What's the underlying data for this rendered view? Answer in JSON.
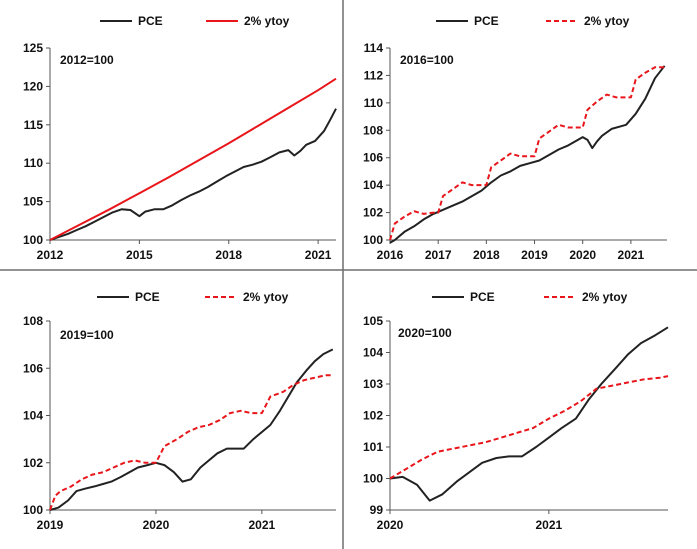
{
  "colors": {
    "pce": "#222222",
    "target": "#e8161b",
    "divider": "#6e6e6e"
  },
  "chart_data": [
    {
      "type": "line",
      "base_note": "2012=100",
      "ylim": [
        100,
        125
      ],
      "yticks": [
        100,
        105,
        110,
        115,
        120,
        125
      ],
      "xlim": [
        2012.0,
        2021.6
      ],
      "xticks": [
        2012,
        2015,
        2018,
        2021
      ],
      "xtick_labels": [
        "2012",
        "2015",
        "2018",
        "2021"
      ],
      "grid": false,
      "legend_position": "top",
      "series": [
        {
          "name": "PCE",
          "style": "solid",
          "color": "#222222",
          "x": [
            2012.0,
            2012.3,
            2012.6,
            2012.9,
            2013.2,
            2013.5,
            2013.8,
            2014.1,
            2014.4,
            2014.7,
            2015.0,
            2015.2,
            2015.5,
            2015.8,
            2016.1,
            2016.4,
            2016.7,
            2017.0,
            2017.3,
            2017.6,
            2017.9,
            2018.2,
            2018.5,
            2018.8,
            2019.1,
            2019.4,
            2019.7,
            2020.0,
            2020.2,
            2020.4,
            2020.6,
            2020.9,
            2021.2,
            2021.4,
            2021.6
          ],
          "values": [
            100.0,
            100.4,
            100.8,
            101.3,
            101.8,
            102.4,
            103.0,
            103.6,
            104.0,
            103.9,
            103.1,
            103.7,
            104.0,
            104.0,
            104.5,
            105.2,
            105.8,
            106.3,
            106.9,
            107.6,
            108.3,
            108.9,
            109.5,
            109.8,
            110.2,
            110.8,
            111.4,
            111.7,
            111.0,
            111.6,
            112.4,
            112.9,
            114.2,
            115.6,
            117.1
          ]
        },
        {
          "name": "2% ytoy",
          "style": "solid",
          "color": "#e8161b",
          "x": [
            2012.0,
            2013.0,
            2014.0,
            2015.0,
            2016.0,
            2017.0,
            2018.0,
            2019.0,
            2020.0,
            2021.0,
            2021.6
          ],
          "values": [
            100.0,
            102.0,
            104.0,
            106.1,
            108.2,
            110.4,
            112.6,
            114.9,
            117.2,
            119.5,
            121.0
          ]
        }
      ]
    },
    {
      "type": "line",
      "base_note": "2016=100",
      "ylim": [
        100,
        114
      ],
      "yticks": [
        100,
        102,
        104,
        106,
        108,
        110,
        112,
        114
      ],
      "xlim": [
        2016.0,
        2021.75
      ],
      "xticks": [
        2016,
        2017,
        2018,
        2019,
        2020,
        2021
      ],
      "xtick_labels": [
        "2016",
        "2017",
        "2018",
        "2019",
        "2020",
        "2021"
      ],
      "grid": false,
      "legend_position": "top",
      "series": [
        {
          "name": "PCE",
          "style": "solid",
          "color": "#222222",
          "x": [
            2016.0,
            2016.1,
            2016.3,
            2016.5,
            2016.7,
            2016.9,
            2017.1,
            2017.3,
            2017.5,
            2017.7,
            2017.9,
            2018.1,
            2018.3,
            2018.5,
            2018.7,
            2018.9,
            2019.1,
            2019.3,
            2019.5,
            2019.7,
            2019.9,
            2020.0,
            2020.1,
            2020.2,
            2020.3,
            2020.4,
            2020.6,
            2020.8,
            2020.9,
            2021.1,
            2021.3,
            2021.5,
            2021.7
          ],
          "values": [
            99.8,
            100.0,
            100.6,
            101.0,
            101.5,
            101.9,
            102.2,
            102.5,
            102.8,
            103.2,
            103.6,
            104.2,
            104.7,
            105.0,
            105.4,
            105.6,
            105.8,
            106.2,
            106.6,
            106.9,
            107.3,
            107.5,
            107.3,
            106.7,
            107.2,
            107.6,
            108.1,
            108.3,
            108.4,
            109.2,
            110.3,
            111.8,
            112.7
          ]
        },
        {
          "name": "2% ytoy",
          "style": "dashed",
          "color": "#e8161b",
          "x": [
            2016.0,
            2016.1,
            2016.3,
            2016.5,
            2016.7,
            2016.9,
            2017.0,
            2017.1,
            2017.3,
            2017.5,
            2017.7,
            2017.9,
            2018.0,
            2018.1,
            2018.3,
            2018.5,
            2018.7,
            2018.9,
            2019.0,
            2019.1,
            2019.3,
            2019.5,
            2019.7,
            2019.9,
            2020.0,
            2020.1,
            2020.3,
            2020.5,
            2020.7,
            2020.9,
            2021.0,
            2021.1,
            2021.3,
            2021.5,
            2021.7
          ],
          "values": [
            100.0,
            101.2,
            101.7,
            102.1,
            101.9,
            102.0,
            102.0,
            103.2,
            103.7,
            104.2,
            104.0,
            104.0,
            104.0,
            105.3,
            105.8,
            106.3,
            106.1,
            106.1,
            106.1,
            107.4,
            107.9,
            108.4,
            108.2,
            108.2,
            108.2,
            109.5,
            110.1,
            110.6,
            110.4,
            110.4,
            110.4,
            111.7,
            112.2,
            112.6,
            112.6
          ]
        }
      ]
    },
    {
      "type": "line",
      "base_note": "2019=100",
      "ylim": [
        100,
        108
      ],
      "yticks": [
        100,
        102,
        104,
        106,
        108
      ],
      "xlim": [
        2019.0,
        2021.7
      ],
      "xticks": [
        2019,
        2020,
        2021
      ],
      "xtick_labels": [
        "2019",
        "2020",
        "2021"
      ],
      "grid": false,
      "legend_position": "top",
      "series": [
        {
          "name": "PCE",
          "style": "solid",
          "color": "#222222",
          "x": [
            2019.0,
            2019.08,
            2019.17,
            2019.25,
            2019.33,
            2019.42,
            2019.5,
            2019.58,
            2019.67,
            2019.75,
            2019.83,
            2019.92,
            2020.0,
            2020.08,
            2020.17,
            2020.25,
            2020.33,
            2020.42,
            2020.5,
            2020.58,
            2020.67,
            2020.75,
            2020.83,
            2020.92,
            2021.0,
            2021.08,
            2021.17,
            2021.25,
            2021.33,
            2021.42,
            2021.5,
            2021.58,
            2021.67
          ],
          "values": [
            100.0,
            100.1,
            100.4,
            100.8,
            100.9,
            101.0,
            101.1,
            101.2,
            101.4,
            101.6,
            101.8,
            101.9,
            102.0,
            101.9,
            101.6,
            101.2,
            101.3,
            101.8,
            102.1,
            102.4,
            102.6,
            102.6,
            102.6,
            103.0,
            103.3,
            103.6,
            104.2,
            104.8,
            105.4,
            105.9,
            106.3,
            106.6,
            106.8
          ]
        },
        {
          "name": "2% ytoy",
          "style": "dashed",
          "color": "#e8161b",
          "x": [
            2019.0,
            2019.05,
            2019.1,
            2019.2,
            2019.3,
            2019.4,
            2019.5,
            2019.6,
            2019.7,
            2019.8,
            2019.9,
            2020.0,
            2020.08,
            2020.2,
            2020.3,
            2020.4,
            2020.5,
            2020.6,
            2020.7,
            2020.8,
            2020.9,
            2021.0,
            2021.08,
            2021.2,
            2021.3,
            2021.4,
            2021.5,
            2021.6,
            2021.67
          ],
          "values": [
            100.0,
            100.6,
            100.8,
            101.0,
            101.3,
            101.5,
            101.6,
            101.8,
            102.0,
            102.1,
            102.0,
            102.0,
            102.7,
            103.0,
            103.3,
            103.5,
            103.6,
            103.8,
            104.1,
            104.2,
            104.1,
            104.1,
            104.8,
            105.0,
            105.3,
            105.5,
            105.6,
            105.7,
            105.7
          ]
        }
      ]
    },
    {
      "type": "line",
      "base_note": "2020=100",
      "ylim": [
        99,
        105
      ],
      "yticks": [
        99,
        100,
        101,
        102,
        103,
        104,
        105
      ],
      "xlim": [
        2020.0,
        2021.75
      ],
      "xticks": [
        2020,
        2021
      ],
      "xtick_labels": [
        "2020",
        "2021"
      ],
      "grid": false,
      "legend_position": "top",
      "series": [
        {
          "name": "PCE",
          "style": "solid",
          "color": "#222222",
          "x": [
            2020.0,
            2020.08,
            2020.17,
            2020.25,
            2020.33,
            2020.42,
            2020.5,
            2020.58,
            2020.67,
            2020.75,
            2020.83,
            2020.92,
            2021.0,
            2021.08,
            2021.17,
            2021.25,
            2021.33,
            2021.42,
            2021.5,
            2021.58,
            2021.67,
            2021.75
          ],
          "values": [
            100.0,
            100.05,
            99.8,
            99.3,
            99.5,
            99.9,
            100.2,
            100.5,
            100.65,
            100.7,
            100.7,
            101.0,
            101.3,
            101.6,
            101.9,
            102.5,
            103.0,
            103.5,
            103.95,
            104.3,
            104.55,
            104.8
          ]
        },
        {
          "name": "2% ytoy",
          "style": "dashed",
          "color": "#e8161b",
          "x": [
            2020.0,
            2020.1,
            2020.2,
            2020.3,
            2020.4,
            2020.5,
            2020.6,
            2020.7,
            2020.8,
            2020.9,
            2021.0,
            2021.1,
            2021.2,
            2021.3,
            2021.4,
            2021.5,
            2021.6,
            2021.7,
            2021.75
          ],
          "values": [
            100.0,
            100.3,
            100.6,
            100.85,
            100.95,
            101.05,
            101.15,
            101.3,
            101.45,
            101.6,
            101.9,
            102.15,
            102.45,
            102.85,
            102.95,
            103.05,
            103.15,
            103.2,
            103.25
          ]
        }
      ]
    }
  ]
}
